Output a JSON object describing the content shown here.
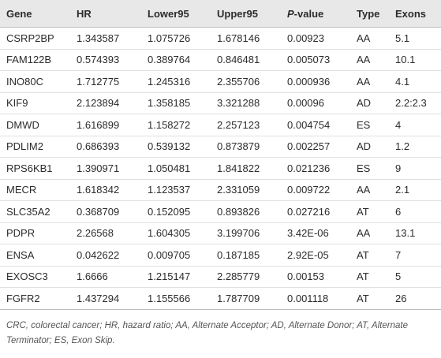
{
  "table": {
    "headers": [
      "Gene",
      "HR",
      "Lower95",
      "Upper95",
      {
        "italic": "P",
        "text": "-value"
      },
      "Type",
      "Exons"
    ],
    "rows": [
      [
        "CSRP2BP",
        "1.343587",
        "1.075726",
        "1.678146",
        "0.00923",
        "AA",
        "5.1"
      ],
      [
        "FAM122B",
        "0.574393",
        "0.389764",
        "0.846481",
        "0.005073",
        "AA",
        "10.1"
      ],
      [
        "INO80C",
        "1.712775",
        "1.245316",
        "2.355706",
        "0.000936",
        "AA",
        "4.1"
      ],
      [
        "KIF9",
        "2.123894",
        "1.358185",
        "3.321288",
        "0.00096",
        "AD",
        "2.2:2.3"
      ],
      [
        "DMWD",
        "1.616899",
        "1.158272",
        "2.257123",
        "0.004754",
        "ES",
        "4"
      ],
      [
        "PDLIM2",
        "0.686393",
        "0.539132",
        "0.873879",
        "0.002257",
        "AD",
        "1.2"
      ],
      [
        "RPS6KB1",
        "1.390971",
        "1.050481",
        "1.841822",
        "0.021236",
        "ES",
        "9"
      ],
      [
        "MECR",
        "1.618342",
        "1.123537",
        "2.331059",
        "0.009722",
        "AA",
        "2.1"
      ],
      [
        "SLC35A2",
        "0.368709",
        "0.152095",
        "0.893826",
        "0.027216",
        "AT",
        "6"
      ],
      [
        "PDPR",
        "2.26568",
        "1.604305",
        "3.199706",
        "3.42E-06",
        "AA",
        "13.1"
      ],
      [
        "ENSA",
        "0.042622",
        "0.009705",
        "0.187185",
        "2.92E-05",
        "AT",
        "7"
      ],
      [
        "EXOSC3",
        "1.6666",
        "1.215147",
        "2.285779",
        "0.00153",
        "AT",
        "5"
      ],
      [
        "FGFR2",
        "1.437294",
        "1.155566",
        "1.787709",
        "0.001118",
        "AT",
        "26"
      ]
    ],
    "footnote": "CRC, colorectal cancer; HR, hazard ratio; AA, Alternate Acceptor; AD, Alternate Donor; AT, Alternate Terminator; ES, Exon Skip."
  }
}
